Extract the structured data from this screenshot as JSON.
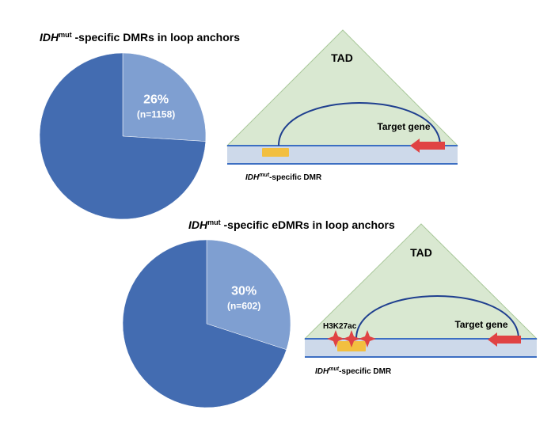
{
  "chart_data": [
    {
      "type": "pie",
      "title_italic": "IDH",
      "title_sup": "mut",
      "title_rest": " -specific DMRs in loop anchors",
      "slices": [
        {
          "value": 26,
          "percent_label": "26%",
          "count_label": "(n=1158)",
          "color": "#7f9fd1",
          "labeled": true
        },
        {
          "value": 74,
          "color": "#436cb1",
          "labeled": false
        }
      ]
    },
    {
      "type": "pie",
      "title_italic": "IDH",
      "title_sup": "mut",
      "title_rest": " -specific eDMRs in loop anchors",
      "slices": [
        {
          "value": 30,
          "percent_label": "30%",
          "count_label": "(n=602)",
          "color": "#7f9fd1",
          "labeled": true
        },
        {
          "value": 70,
          "color": "#436cb1",
          "labeled": false
        }
      ]
    }
  ],
  "diagrams": [
    {
      "tad_label": "TAD",
      "target_gene_label": "Target gene",
      "dmr_label_italic": "IDH",
      "dmr_label_sup": "mut",
      "dmr_label_rest": "-specific DMR"
    },
    {
      "tad_label": "TAD",
      "target_gene_label": "Target gene",
      "mark_label": "H3K27ac",
      "dmr_label_italic": "IDH",
      "dmr_label_sup": "mut",
      "dmr_label_rest": "-specific DMR"
    }
  ],
  "colors": {
    "tad_fill": "#d9e8d1",
    "tad_stroke": "#a9c89a",
    "dna_fill": "#cdd9ea",
    "dna_line": "#3c6ec2",
    "loop": "#1f3f8f",
    "gene_arrow": "#e04343",
    "dmr": "#f2bf40",
    "h3k27ac": "#e04343"
  }
}
